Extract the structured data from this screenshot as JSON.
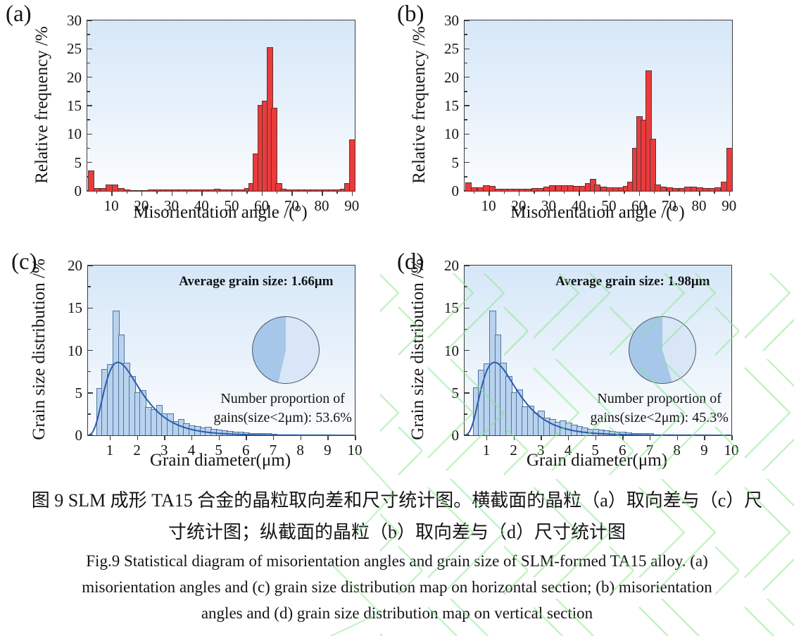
{
  "captions": {
    "zh_lines": [
      "图 9 SLM 成形 TA15 合金的晶粒取向差和尺寸统计图。横截面的晶粒（a）取向差与（c）尺",
      "寸统计图；纵截面的晶粒（b）取向差与（d）尺寸统计图"
    ],
    "en_lines": [
      "Fig.9 Statistical diagram of misorientation angles and grain size of SLM-formed TA15 alloy. (a)",
      "misorientation angles and (c) grain size distribution map on horizontal section; (b) misorientation",
      "angles and (d) grain size distribution map on vertical section"
    ]
  },
  "colors": {
    "frame": "#3c3c3c",
    "plot_bg_top": "#d6e7f8",
    "plot_bg_bottom": "#fcfdff",
    "watermark_green": "#85e585"
  },
  "chart_data": [
    {
      "id": "a",
      "panel_label": "(a)",
      "type": "bar",
      "xlabel": "Misorientation angle /(°)",
      "ylabel": "Relative frequency /%",
      "xlim": [
        2,
        91
      ],
      "ylim": [
        0,
        30
      ],
      "xticks": [
        10,
        20,
        30,
        40,
        50,
        60,
        70,
        80,
        90
      ],
      "x_minor_step": 5,
      "yticks": [
        0,
        5,
        10,
        15,
        20,
        25,
        30
      ],
      "y_minor_step": 2.5,
      "grid": false,
      "bar_width": 1.7,
      "bar_fill": "#ea3b3c",
      "bar_edge": "#5d3333",
      "bars": [
        [
          3,
          3.5
        ],
        [
          5,
          0.4
        ],
        [
          7,
          0.35
        ],
        [
          9,
          1.0
        ],
        [
          11,
          1.05
        ],
        [
          13,
          0.35
        ],
        [
          15,
          0.08
        ],
        [
          17,
          0.06
        ],
        [
          19,
          0.06
        ],
        [
          21,
          0.06
        ],
        [
          23,
          0.08
        ],
        [
          25,
          0.08
        ],
        [
          27,
          0.1
        ],
        [
          29,
          0.15
        ],
        [
          31,
          0.15
        ],
        [
          33,
          0.1
        ],
        [
          35,
          0.12
        ],
        [
          37,
          0.08
        ],
        [
          39,
          0.08
        ],
        [
          41,
          0.08
        ],
        [
          43,
          0.1
        ],
        [
          45,
          0.25
        ],
        [
          47,
          0.1
        ],
        [
          49,
          0.08
        ],
        [
          51,
          0.1
        ],
        [
          53,
          0.1
        ],
        [
          55,
          0.35
        ],
        [
          56.5,
          1.2
        ],
        [
          58,
          6.5
        ],
        [
          59.5,
          15.0
        ],
        [
          61,
          15.7
        ],
        [
          62.5,
          25.2
        ],
        [
          64,
          14.5
        ],
        [
          65.5,
          1.3
        ],
        [
          67,
          0.3
        ],
        [
          69,
          0.15
        ],
        [
          71,
          0.12
        ],
        [
          73,
          0.12
        ],
        [
          75,
          0.15
        ],
        [
          77,
          0.15
        ],
        [
          79,
          0.12
        ],
        [
          81,
          0.1
        ],
        [
          83,
          0.1
        ],
        [
          85,
          0.1
        ],
        [
          87,
          0.3
        ],
        [
          88.3,
          1.3
        ],
        [
          90,
          8.9
        ]
      ]
    },
    {
      "id": "b",
      "panel_label": "(b)",
      "type": "bar",
      "xlabel": "Misorientation angle /(°)",
      "ylabel": "Relative frequency /%",
      "xlim": [
        2,
        91
      ],
      "ylim": [
        0,
        30
      ],
      "xticks": [
        10,
        20,
        30,
        40,
        50,
        60,
        70,
        80,
        90
      ],
      "x_minor_step": 5,
      "yticks": [
        0,
        5,
        10,
        15,
        20,
        25,
        30
      ],
      "y_minor_step": 2.5,
      "grid": false,
      "bar_width": 1.7,
      "bar_fill": "#ea3b3c",
      "bar_edge": "#5d3333",
      "bars": [
        [
          3,
          1.4
        ],
        [
          5,
          0.45
        ],
        [
          7,
          0.5
        ],
        [
          9,
          0.9
        ],
        [
          11,
          0.8
        ],
        [
          13,
          0.3
        ],
        [
          15,
          0.2
        ],
        [
          17,
          0.3
        ],
        [
          19,
          0.3
        ],
        [
          21,
          0.3
        ],
        [
          23,
          0.3
        ],
        [
          25,
          0.35
        ],
        [
          27,
          0.4
        ],
        [
          29,
          0.65
        ],
        [
          31,
          0.85
        ],
        [
          33,
          0.85
        ],
        [
          35,
          0.9
        ],
        [
          37,
          0.9
        ],
        [
          39,
          0.8
        ],
        [
          41,
          0.75
        ],
        [
          43,
          1.2
        ],
        [
          44.5,
          1.95
        ],
        [
          46,
          1.0
        ],
        [
          48,
          0.6
        ],
        [
          50,
          0.5
        ],
        [
          52,
          0.45
        ],
        [
          54,
          0.5
        ],
        [
          55.5,
          0.7
        ],
        [
          57,
          1.5
        ],
        [
          58.5,
          7.4
        ],
        [
          60,
          13.0
        ],
        [
          61.5,
          12.4
        ],
        [
          63,
          21.1
        ],
        [
          64.5,
          9.1
        ],
        [
          66,
          1.0
        ],
        [
          68,
          0.6
        ],
        [
          70,
          0.45
        ],
        [
          72,
          0.35
        ],
        [
          74,
          0.4
        ],
        [
          76,
          0.6
        ],
        [
          78,
          0.6
        ],
        [
          80,
          0.5
        ],
        [
          82,
          0.4
        ],
        [
          84,
          0.4
        ],
        [
          86,
          0.5
        ],
        [
          88,
          1.5
        ],
        [
          90,
          7.5
        ]
      ]
    },
    {
      "id": "c",
      "panel_label": "(c)",
      "type": "bar+line",
      "xlabel": "Grain diameter(μm)",
      "ylabel": "Grain size distribution /%",
      "xlim": [
        0.2,
        10
      ],
      "ylim": [
        0,
        20
      ],
      "xticks": [
        1,
        2,
        3,
        4,
        5,
        6,
        7,
        8,
        9,
        10
      ],
      "x_minor_step": null,
      "yticks": [
        0,
        5,
        10,
        15,
        20
      ],
      "y_minor_step": 2.5,
      "grid": false,
      "bar_width": 0.2,
      "bar_fill": "#b9d2ee",
      "bar_edge": "#51749e",
      "bars": [
        [
          0.6,
          5.5
        ],
        [
          0.8,
          7.7
        ],
        [
          1.0,
          8.3
        ],
        [
          1.2,
          14.6
        ],
        [
          1.4,
          11.8
        ],
        [
          1.6,
          8.5
        ],
        [
          1.8,
          6.9
        ],
        [
          2.0,
          5.0
        ],
        [
          2.2,
          5.2
        ],
        [
          2.4,
          3.2
        ],
        [
          2.6,
          3.0
        ],
        [
          2.8,
          3.5
        ],
        [
          3.0,
          2.5
        ],
        [
          3.2,
          2.5
        ],
        [
          3.4,
          1.6
        ],
        [
          3.6,
          1.8
        ],
        [
          3.8,
          1.3
        ],
        [
          4.0,
          1.1
        ],
        [
          4.2,
          1.0
        ],
        [
          4.4,
          0.8
        ],
        [
          4.6,
          0.9
        ],
        [
          4.8,
          0.7
        ],
        [
          5.0,
          0.6
        ],
        [
          5.2,
          0.5
        ],
        [
          5.4,
          0.4
        ],
        [
          5.6,
          0.35
        ],
        [
          5.8,
          0.3
        ],
        [
          6.0,
          0.25
        ],
        [
          6.2,
          0.2
        ],
        [
          6.4,
          0.2
        ],
        [
          6.6,
          0.15
        ],
        [
          6.8,
          0.15
        ],
        [
          7.0,
          0.1
        ]
      ],
      "curve": {
        "shape": "lognormal",
        "mode": 1.3,
        "sigma": 0.5,
        "peak": 8.6,
        "color": "#2a5caa"
      },
      "pie": {
        "light_deg": 193,
        "light_color": "#d9e6f7",
        "dark_color": "#a6c6ea"
      },
      "annotations": {
        "average": "Average grain size: 1.66μm",
        "proportion_line1": "Number proportion of",
        "proportion_line2": "gains(size<2μm): 53.6%"
      }
    },
    {
      "id": "d",
      "panel_label": "(d)",
      "type": "bar+line",
      "xlabel": "Grain diameter(μm)",
      "ylabel": "Grain size distribution /%",
      "xlim": [
        0.2,
        10
      ],
      "ylim": [
        0,
        20
      ],
      "xticks": [
        1,
        2,
        3,
        4,
        5,
        6,
        7,
        8,
        9,
        10
      ],
      "x_minor_step": null,
      "yticks": [
        0,
        5,
        10,
        15,
        20
      ],
      "y_minor_step": 2.5,
      "grid": false,
      "bar_width": 0.2,
      "bar_fill": "#b9d2ee",
      "bar_edge": "#51749e",
      "bars": [
        [
          0.6,
          5.6
        ],
        [
          0.8,
          7.6
        ],
        [
          1.0,
          8.4
        ],
        [
          1.2,
          14.6
        ],
        [
          1.4,
          11.8
        ],
        [
          1.6,
          8.5
        ],
        [
          1.8,
          6.9
        ],
        [
          2.0,
          5.0
        ],
        [
          2.2,
          5.3
        ],
        [
          2.4,
          3.3
        ],
        [
          2.6,
          3.4
        ],
        [
          2.8,
          2.6
        ],
        [
          3.0,
          2.8
        ],
        [
          3.2,
          2.0
        ],
        [
          3.4,
          1.8
        ],
        [
          3.6,
          1.5
        ],
        [
          3.8,
          1.7
        ],
        [
          4.0,
          1.4
        ],
        [
          4.2,
          1.2
        ],
        [
          4.4,
          1.0
        ],
        [
          4.6,
          0.8
        ],
        [
          4.8,
          0.7
        ],
        [
          5.0,
          0.7
        ],
        [
          5.2,
          0.6
        ],
        [
          5.4,
          0.5
        ],
        [
          5.6,
          0.4
        ],
        [
          5.8,
          0.35
        ],
        [
          6.0,
          0.3
        ],
        [
          6.2,
          0.25
        ],
        [
          6.4,
          0.2
        ],
        [
          6.6,
          0.2
        ],
        [
          6.8,
          0.15
        ],
        [
          7.0,
          0.15
        ]
      ],
      "curve": {
        "shape": "lognormal",
        "mode": 1.3,
        "sigma": 0.5,
        "peak": 8.6,
        "color": "#2a5caa"
      },
      "pie": {
        "light_deg": 163,
        "light_color": "#d9e6f7",
        "dark_color": "#a6c6ea"
      },
      "annotations": {
        "average": "Average grain size: 1.98μm",
        "proportion_line1": "Number proportion of",
        "proportion_line2": "gains(size<2μm): 45.3%"
      }
    }
  ]
}
